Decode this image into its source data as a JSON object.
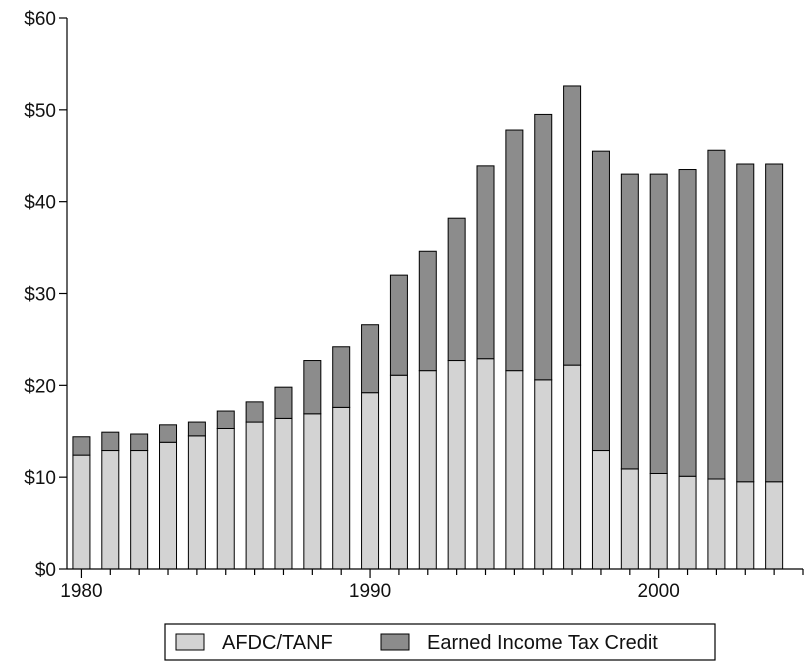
{
  "chart_data": {
    "type": "bar",
    "stacked": true,
    "x": [
      1980,
      1981,
      1982,
      1983,
      1984,
      1985,
      1986,
      1987,
      1988,
      1989,
      1990,
      1991,
      1992,
      1993,
      1994,
      1995,
      1996,
      1997,
      1998,
      1999,
      2000,
      2001,
      2002,
      2003,
      2004
    ],
    "series": [
      {
        "name": "AFDC/TANF",
        "color": "#d3d3d3",
        "values": [
          12.4,
          12.9,
          12.9,
          13.8,
          14.5,
          15.3,
          16.0,
          16.4,
          16.9,
          17.6,
          19.2,
          21.1,
          21.6,
          22.7,
          22.9,
          21.6,
          20.6,
          22.2,
          12.9,
          10.9,
          10.4,
          10.1,
          9.8,
          9.5,
          9.5
        ]
      },
      {
        "name": "Earned Income Tax Credit",
        "color": "#8c8c8c",
        "values": [
          2.0,
          2.0,
          1.8,
          1.9,
          1.5,
          1.9,
          2.2,
          3.4,
          5.8,
          6.6,
          7.4,
          10.9,
          13.0,
          15.5,
          21.0,
          26.2,
          28.9,
          30.4,
          32.6,
          32.1,
          32.6,
          33.4,
          35.8,
          34.6,
          34.6
        ]
      }
    ],
    "ylim": [
      0,
      60
    ],
    "yticks": [
      {
        "value": 0,
        "label": "$0"
      },
      {
        "value": 10,
        "label": "$10"
      },
      {
        "value": 20,
        "label": "$20"
      },
      {
        "value": 30,
        "label": "$30"
      },
      {
        "value": 40,
        "label": "$40"
      },
      {
        "value": 50,
        "label": "$50"
      },
      {
        "value": 60,
        "label": "$60"
      }
    ],
    "xticks": [
      {
        "value": 1980,
        "label": "1980"
      },
      {
        "value": 1990,
        "label": "1990"
      },
      {
        "value": 2000,
        "label": "2000"
      }
    ],
    "xrange": [
      1979.5,
      2005
    ],
    "legend": {
      "position": "bottom"
    },
    "grid": false
  }
}
